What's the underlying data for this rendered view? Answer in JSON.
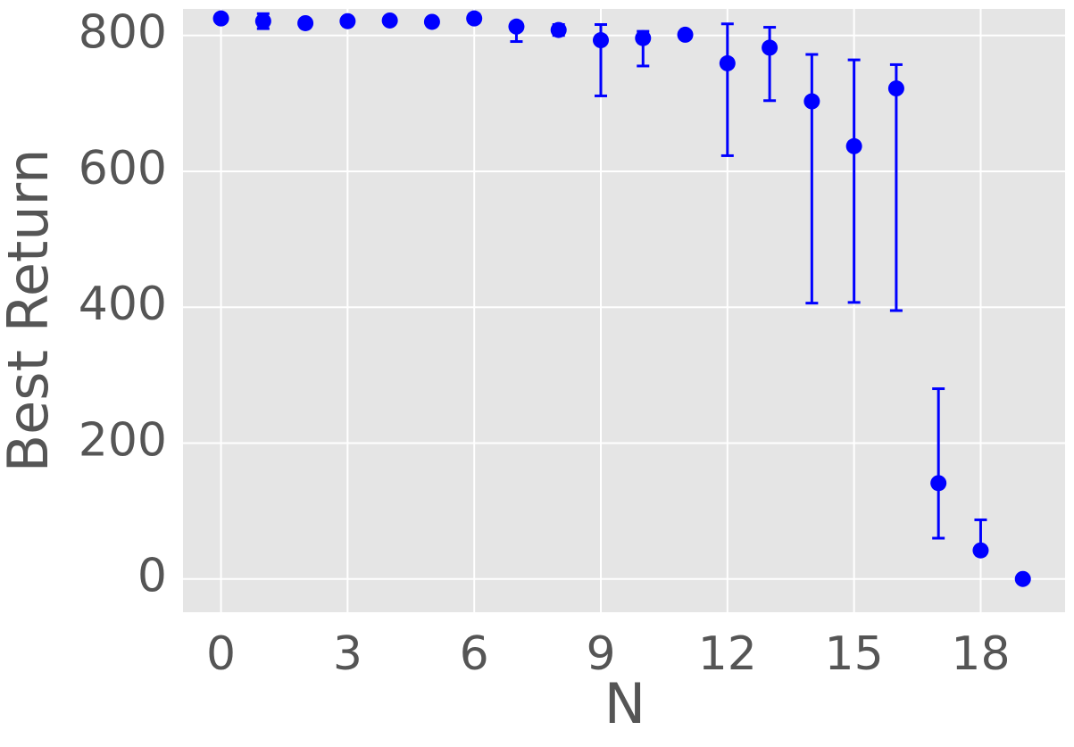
{
  "chart_data": {
    "type": "errorbar",
    "xlabel": "N",
    "ylabel": "Best Return",
    "x": [
      0,
      1,
      2,
      3,
      4,
      5,
      6,
      7,
      8,
      9,
      10,
      11,
      12,
      13,
      14,
      15,
      16,
      17,
      18,
      19
    ],
    "series": [
      {
        "color": "#0000ff",
        "values": [
          825,
          821,
          818,
          821,
          822,
          820,
          825,
          813,
          808,
          793,
          796,
          801,
          759,
          782,
          703,
          637,
          722,
          141,
          42,
          0
        ],
        "err_minus": [
          3,
          11,
          3,
          2,
          2,
          3,
          6,
          22,
          8,
          82,
          41,
          0,
          136,
          78,
          297,
          230,
          327,
          81,
          0,
          0
        ],
        "err_plus": [
          3,
          11,
          3,
          2,
          2,
          3,
          6,
          4,
          8,
          23,
          10,
          0,
          58,
          30,
          69,
          127,
          35,
          139,
          45,
          0
        ]
      }
    ],
    "xlim": [
      -0.9,
      20
    ],
    "ylim": [
      -49,
      839
    ],
    "xticks": [
      0,
      3,
      6,
      9,
      12,
      15,
      18
    ],
    "yticks": [
      0,
      200,
      400,
      600,
      800
    ],
    "grid": true
  }
}
